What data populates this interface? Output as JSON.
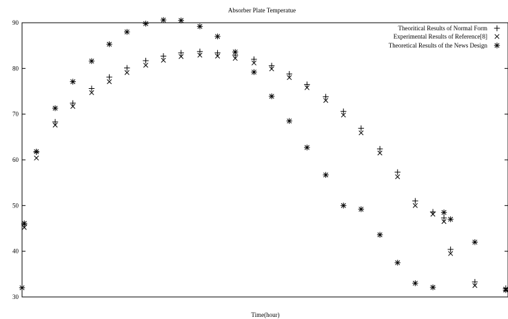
{
  "chart_data": {
    "type": "scatter",
    "title": "Absorber Plate Temperatue",
    "xlabel": "Time(hour)",
    "ylabel": "",
    "xlim": [
      0,
      44
    ],
    "ylim": [
      30,
      90
    ],
    "yticks": [
      "30",
      "40",
      "50",
      "60",
      "70",
      "80",
      "90"
    ],
    "grid": false,
    "legend_position": "top-right",
    "series": [
      {
        "name": "Theoritical Results of Normal Form",
        "marker": "plus",
        "x": [
          0.2,
          1.3,
          3.0,
          4.6,
          6.3,
          7.9,
          9.5,
          11.2,
          12.8,
          14.4,
          16.1,
          17.7,
          19.3,
          21.0,
          22.6,
          24.2,
          25.8,
          27.5,
          29.1,
          30.7,
          32.4,
          34.0,
          35.6,
          37.2,
          38.2,
          38.8,
          41.0,
          43.8
        ],
        "y": [
          45.8,
          61.7,
          68.3,
          72.4,
          75.6,
          78.1,
          80.1,
          81.7,
          82.7,
          83.4,
          83.7,
          83.4,
          82.9,
          82.0,
          80.6,
          78.8,
          76.5,
          73.8,
          70.6,
          66.9,
          62.4,
          57.3,
          51.0,
          48.6,
          47.3,
          40.4,
          33.3,
          31.9
        ]
      },
      {
        "name": "Experimental Results of Reference[8]",
        "marker": "x",
        "x": [
          0.2,
          1.3,
          3.0,
          4.6,
          6.3,
          7.9,
          9.5,
          11.2,
          12.8,
          14.4,
          16.1,
          17.7,
          19.3,
          21.0,
          22.6,
          24.2,
          25.8,
          27.5,
          29.1,
          30.7,
          32.4,
          34.0,
          35.6,
          37.2,
          38.2,
          38.8,
          41.0,
          43.8
        ],
        "y": [
          45.2,
          60.4,
          67.6,
          71.7,
          74.7,
          77.1,
          79.1,
          80.7,
          81.8,
          82.6,
          82.9,
          82.7,
          82.2,
          81.2,
          79.9,
          78.0,
          75.8,
          73.0,
          69.8,
          65.9,
          61.5,
          56.3,
          50.0,
          48.1,
          46.5,
          39.5,
          32.5,
          31.7
        ]
      },
      {
        "name": "Theoretical Results of the News Design",
        "marker": "asterisk",
        "x": [
          0.0,
          0.2,
          1.3,
          3.0,
          4.6,
          6.3,
          7.9,
          9.5,
          11.2,
          12.8,
          14.4,
          16.1,
          17.7,
          19.3,
          21.0,
          22.6,
          24.2,
          25.8,
          27.5,
          29.1,
          30.7,
          32.4,
          34.0,
          35.6,
          37.2,
          38.2,
          38.8,
          41.0,
          43.8
        ],
        "y": [
          32.0,
          46.1,
          61.8,
          71.3,
          77.1,
          81.6,
          85.3,
          88.0,
          89.8,
          90.6,
          90.5,
          89.2,
          87.0,
          83.6,
          79.2,
          73.9,
          68.5,
          62.7,
          56.7,
          50.0,
          49.2,
          43.6,
          37.5,
          33.0,
          32.1,
          48.5,
          47.0,
          42.0,
          31.5
        ]
      }
    ]
  }
}
